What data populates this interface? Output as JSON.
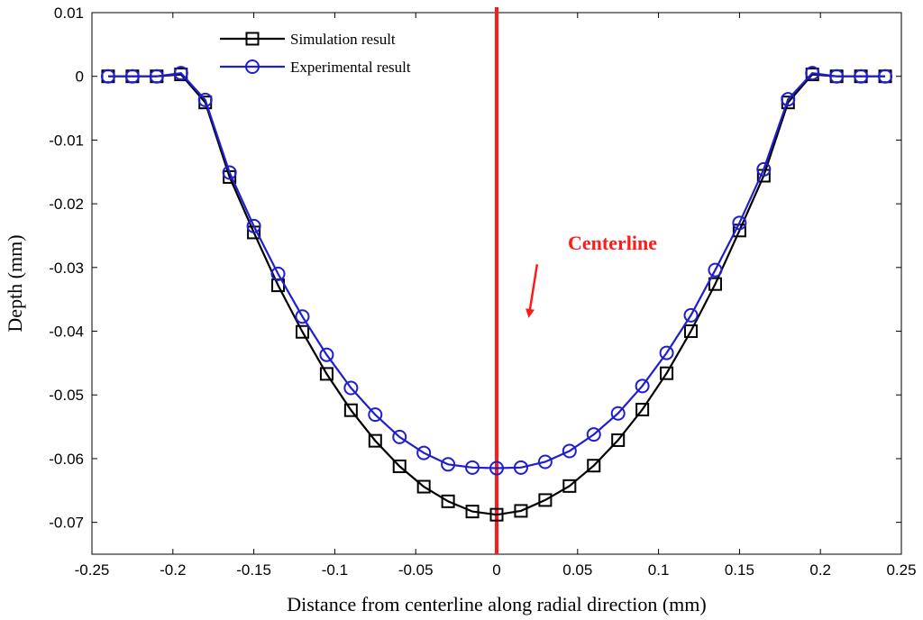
{
  "chart_data": {
    "type": "line",
    "title": "",
    "xlabel": "Distance from centerline along radial direction (mm)",
    "ylabel": "Depth (mm)",
    "xlim": [
      -0.25,
      0.25
    ],
    "ylim": [
      -0.075,
      0.01
    ],
    "grid": false,
    "legend_position": "top-left",
    "x_ticks": [
      -0.25,
      -0.2,
      -0.15,
      -0.1,
      -0.05,
      0,
      0.05,
      0.1,
      0.15,
      0.2,
      0.25
    ],
    "x_tick_labels": [
      "-0.25",
      "-0.2",
      "-0.15",
      "-0.1",
      "-0.05",
      "0",
      "0.05",
      "0.1",
      "0.15",
      "0.2",
      "0.25"
    ],
    "y_ticks": [
      0.01,
      0,
      -0.01,
      -0.02,
      -0.03,
      -0.04,
      -0.05,
      -0.06,
      -0.07
    ],
    "y_tick_labels": [
      "0.01",
      "0",
      "-0.01",
      "-0.02",
      "-0.03",
      "-0.04",
      "-0.05",
      "-0.06",
      "-0.07"
    ],
    "series": [
      {
        "name": "Simulation result",
        "color": "#000000",
        "marker": "square",
        "x": [
          -0.24,
          -0.225,
          -0.21,
          -0.195,
          -0.18,
          -0.165,
          -0.15,
          -0.135,
          -0.12,
          -0.105,
          -0.09,
          -0.075,
          -0.06,
          -0.045,
          -0.03,
          -0.015,
          0,
          0.015,
          0.03,
          0.045,
          0.06,
          0.075,
          0.09,
          0.105,
          0.12,
          0.135,
          0.15,
          0.165,
          0.18,
          0.195,
          0.21,
          0.225,
          0.24
        ],
        "y": [
          0,
          0,
          0,
          0.0003,
          -0.0041,
          -0.0158,
          -0.0245,
          -0.0328,
          -0.0401,
          -0.0467,
          -0.0524,
          -0.0572,
          -0.0612,
          -0.0644,
          -0.0667,
          -0.0683,
          -0.0688,
          -0.0682,
          -0.0665,
          -0.0643,
          -0.0611,
          -0.0571,
          -0.0523,
          -0.0466,
          -0.04,
          -0.0326,
          -0.0242,
          -0.0156,
          -0.0041,
          0.0003,
          0,
          0,
          0
        ]
      },
      {
        "name": "Experimental result",
        "color": "#1f1fd0",
        "marker": "circle",
        "x": [
          -0.24,
          -0.225,
          -0.21,
          -0.195,
          -0.18,
          -0.165,
          -0.15,
          -0.135,
          -0.12,
          -0.105,
          -0.09,
          -0.075,
          -0.06,
          -0.045,
          -0.03,
          -0.015,
          0,
          0.015,
          0.03,
          0.045,
          0.06,
          0.075,
          0.09,
          0.105,
          0.12,
          0.135,
          0.15,
          0.165,
          0.18,
          0.195,
          0.21,
          0.225,
          0.24
        ],
        "y": [
          0,
          0,
          0,
          0.0005,
          -0.0037,
          -0.0151,
          -0.0235,
          -0.031,
          -0.0377,
          -0.0437,
          -0.0489,
          -0.0531,
          -0.0566,
          -0.0591,
          -0.0609,
          -0.0614,
          -0.0615,
          -0.0614,
          -0.0605,
          -0.0588,
          -0.0562,
          -0.0529,
          -0.0486,
          -0.0434,
          -0.0375,
          -0.0304,
          -0.023,
          -0.0146,
          -0.0036,
          0.0005,
          0,
          0,
          0
        ]
      }
    ],
    "centerline": {
      "x": 0,
      "color": "#ff1a1a"
    },
    "annotation": {
      "text": "Centerline",
      "color": "#ff1a1a",
      "arrow_from": [
        0.025,
        -0.0295
      ],
      "arrow_to": [
        0.02,
        -0.0375
      ]
    }
  }
}
